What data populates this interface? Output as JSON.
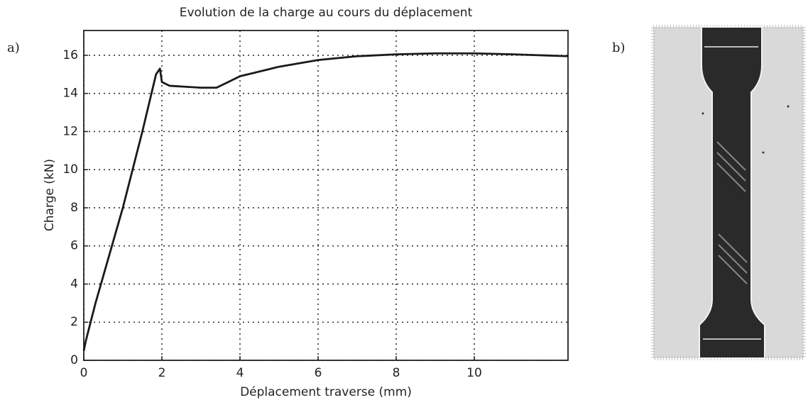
{
  "panel_labels": [
    "a)",
    "b)"
  ],
  "chart_data": {
    "type": "line",
    "title": "Evolution de la charge au cours du déplacement",
    "x_label": "Déplacement traverse (mm)",
    "y_label": "Charge (kN)",
    "x": [
      0,
      0.05,
      0.3,
      1,
      1.5,
      1.85,
      1.95,
      2.0,
      2.2,
      3,
      3.4,
      3.7,
      4,
      5,
      6,
      7,
      8,
      9,
      10,
      11,
      12.4
    ],
    "values": [
      0.5,
      1.0,
      3,
      8,
      12,
      15,
      15.3,
      14.6,
      14.4,
      14.3,
      14.3,
      14.6,
      14.9,
      15.4,
      15.75,
      15.95,
      16.05,
      16.1,
      16.1,
      16.05,
      15.95
    ],
    "color": "#1a1a1a",
    "xlim": [
      0,
      12.4
    ],
    "ylim": [
      0,
      17.3
    ],
    "xticks": [
      0,
      2,
      4,
      6,
      8,
      10
    ],
    "yticks": [
      0,
      2,
      4,
      6,
      8,
      10,
      12,
      14,
      16
    ],
    "grid": true
  }
}
